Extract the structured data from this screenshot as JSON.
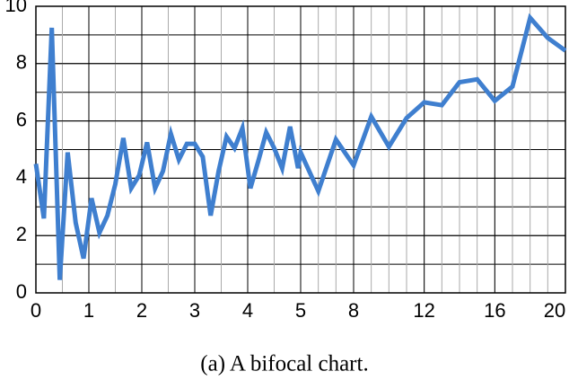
{
  "chart_data": {
    "type": "line",
    "caption": "(a)  A bifocal chart.",
    "x": [
      0,
      0.15,
      0.3,
      0.45,
      0.6,
      0.75,
      0.9,
      1.05,
      1.2,
      1.35,
      1.5,
      1.65,
      1.8,
      1.95,
      2.1,
      2.25,
      2.4,
      2.55,
      2.7,
      2.85,
      3.0,
      3.15,
      3.3,
      3.45,
      3.6,
      3.75,
      3.9,
      4.05,
      4.2,
      4.35,
      4.5,
      4.65,
      4.8,
      4.95,
      5,
      6,
      7,
      8,
      9,
      10,
      11,
      12,
      13,
      14,
      15,
      16,
      17,
      18,
      19,
      20
    ],
    "values": [
      4.5,
      2.6,
      9.25,
      0.45,
      4.9,
      2.45,
      1.2,
      3.3,
      2.1,
      2.7,
      3.8,
      5.4,
      3.65,
      4.1,
      5.25,
      3.65,
      4.25,
      5.55,
      4.65,
      5.2,
      5.2,
      4.75,
      2.7,
      4.25,
      5.45,
      5.05,
      5.75,
      3.65,
      4.6,
      5.6,
      5.05,
      4.35,
      5.8,
      4.35,
      4.9,
      3.55,
      5.35,
      4.45,
      6.15,
      5.1,
      6.1,
      6.65,
      6.55,
      7.35,
      7.45,
      6.7,
      7.2,
      9.6,
      8.9,
      8.45
    ],
    "color": "#3f7fcf",
    "xlim": [
      0,
      20
    ],
    "x_focus": [
      0,
      5
    ],
    "xticks": [
      0,
      1,
      2,
      3,
      4,
      5,
      8,
      12,
      16,
      20
    ],
    "ylim": [
      0,
      10
    ],
    "yticks": [
      0,
      2,
      4,
      6,
      8,
      10
    ],
    "grid": true
  }
}
